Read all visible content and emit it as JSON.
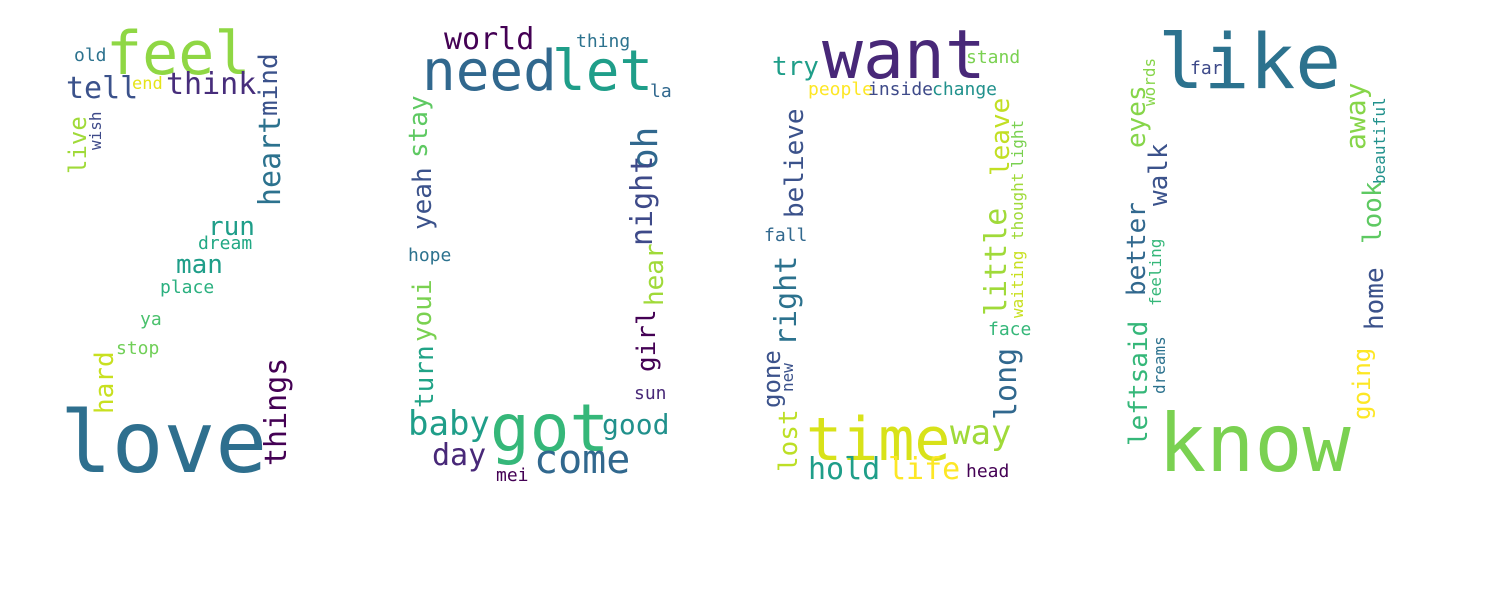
{
  "palette": {
    "deep_purple": "#440154",
    "purple": "#482878",
    "indigo": "#3e4a89",
    "blue": "#31688e",
    "teal_blue": "#26828e",
    "teal": "#1f9e89",
    "green_teal": "#35b779",
    "green": "#6ece58",
    "lime": "#b5de2b",
    "yellow": "#fde725"
  },
  "clouds": [
    {
      "words": [
        {
          "text": "love",
          "color": "#2e6f8e"
        },
        {
          "text": "feel",
          "color": "#8fd744"
        },
        {
          "text": "tell",
          "color": "#3b528b"
        },
        {
          "text": "think",
          "color": "#472d7b"
        },
        {
          "text": "old",
          "color": "#2c728e"
        },
        {
          "text": "end",
          "color": "#e5e419"
        },
        {
          "text": "mind",
          "color": "#3b528b"
        },
        {
          "text": "heart",
          "color": "#2c728e"
        },
        {
          "text": "wish",
          "color": "#3e4a89"
        },
        {
          "text": "live",
          "color": "#a0da39"
        },
        {
          "text": "run",
          "color": "#1f9e89"
        },
        {
          "text": "dream",
          "color": "#22a884"
        },
        {
          "text": "man",
          "color": "#1f9e89"
        },
        {
          "text": "place",
          "color": "#2ab07f"
        },
        {
          "text": "ya",
          "color": "#4ac16d"
        },
        {
          "text": "stop",
          "color": "#70cf57"
        },
        {
          "text": "hard",
          "color": "#c8e020"
        },
        {
          "text": "things",
          "color": "#440154"
        }
      ]
    },
    {
      "words": [
        {
          "text": "world",
          "color": "#440154"
        },
        {
          "text": "thing",
          "color": "#2c728e"
        },
        {
          "text": "need",
          "color": "#31688e"
        },
        {
          "text": "let",
          "color": "#1f9e89"
        },
        {
          "text": "la",
          "color": "#31688e"
        },
        {
          "text": "stay",
          "color": "#5ec962"
        },
        {
          "text": "yeah",
          "color": "#3b528b"
        },
        {
          "text": "hope",
          "color": "#2c728e"
        },
        {
          "text": "oh",
          "color": "#31688e"
        },
        {
          "text": "night",
          "color": "#3e4a89"
        },
        {
          "text": "hear",
          "color": "#a0da39"
        },
        {
          "text": "girl",
          "color": "#440154"
        },
        {
          "text": "youi",
          "color": "#7ad151"
        },
        {
          "text": "turn",
          "color": "#20a386"
        },
        {
          "text": "sun",
          "color": "#482878"
        },
        {
          "text": "baby",
          "color": "#1f9e89"
        },
        {
          "text": "got",
          "color": "#35b779"
        },
        {
          "text": "good",
          "color": "#21918c"
        },
        {
          "text": "day",
          "color": "#482878"
        },
        {
          "text": "come",
          "color": "#31688e"
        },
        {
          "text": "mei",
          "color": "#440154"
        }
      ]
    },
    {
      "words": [
        {
          "text": "want",
          "color": "#482878"
        },
        {
          "text": "try",
          "color": "#1f9e89"
        },
        {
          "text": "stand",
          "color": "#7ad151"
        },
        {
          "text": "people",
          "color": "#fde725"
        },
        {
          "text": "inside",
          "color": "#3e4a89"
        },
        {
          "text": "change",
          "color": "#21918c"
        },
        {
          "text": "believe",
          "color": "#3b528b"
        },
        {
          "text": "leave",
          "color": "#c2df23"
        },
        {
          "text": "thought",
          "color": "#a0da39"
        },
        {
          "text": "light",
          "color": "#7ad151"
        },
        {
          "text": "fall",
          "color": "#31688e"
        },
        {
          "text": "little",
          "color": "#a0da39"
        },
        {
          "text": "waiting",
          "color": "#c8e020"
        },
        {
          "text": "right",
          "color": "#2c728e"
        },
        {
          "text": "face",
          "color": "#35b779"
        },
        {
          "text": "gone",
          "color": "#3b528b"
        },
        {
          "text": "new",
          "color": "#3b528b"
        },
        {
          "text": "long",
          "color": "#31688e"
        },
        {
          "text": "lost",
          "color": "#bddf26"
        },
        {
          "text": "time",
          "color": "#d8e219"
        },
        {
          "text": "way",
          "color": "#a0da39"
        },
        {
          "text": "hold",
          "color": "#1f9e89"
        },
        {
          "text": "life",
          "color": "#fde725"
        },
        {
          "text": "head",
          "color": "#440154"
        }
      ]
    },
    {
      "words": [
        {
          "text": "like",
          "color": "#2c728e"
        },
        {
          "text": "far",
          "color": "#3e4a89"
        },
        {
          "text": "words",
          "color": "#86d549"
        },
        {
          "text": "eyes",
          "color": "#86d549"
        },
        {
          "text": "away",
          "color": "#86d549"
        },
        {
          "text": "beautiful",
          "color": "#21918c"
        },
        {
          "text": "walk",
          "color": "#3b528b"
        },
        {
          "text": "better",
          "color": "#31688e"
        },
        {
          "text": "feeling",
          "color": "#35b779"
        },
        {
          "text": "look",
          "color": "#5ec962"
        },
        {
          "text": "home",
          "color": "#3b528b"
        },
        {
          "text": "leftsaid",
          "color": "#35b779"
        },
        {
          "text": "dreams",
          "color": "#2c728e"
        },
        {
          "text": "going",
          "color": "#fde725"
        },
        {
          "text": "know",
          "color": "#7ad151"
        }
      ]
    }
  ]
}
